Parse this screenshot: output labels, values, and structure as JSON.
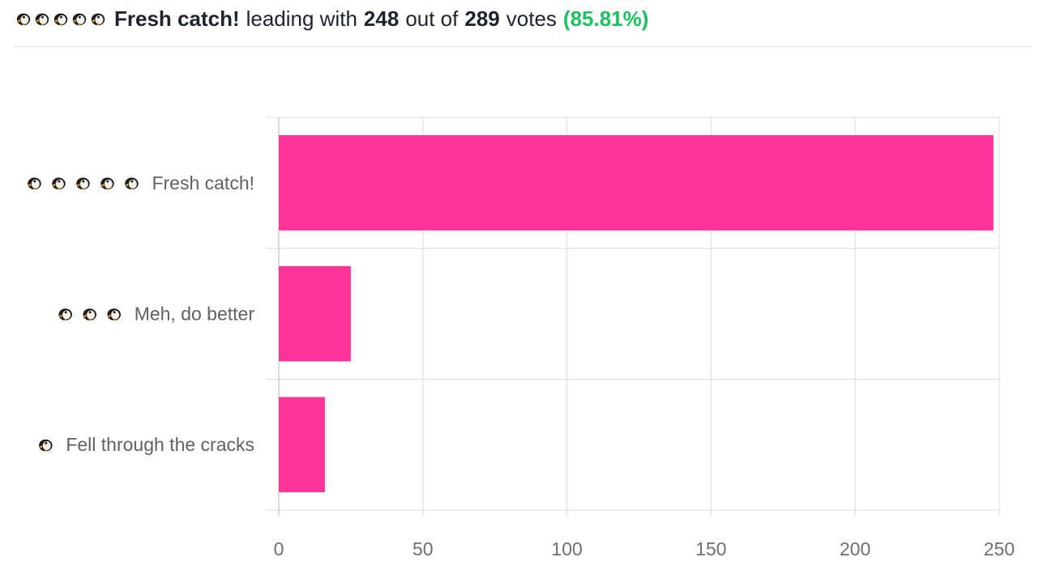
{
  "summary": {
    "icon_name": "penguin-icon",
    "icon_count": 5,
    "leader": "Fresh catch!",
    "text_leading": "leading with",
    "votes_leader": "248",
    "text_out_of": "out of",
    "votes_total": "289",
    "text_votes": "votes",
    "percent": "(85.81%)",
    "percent_color": "#1ec15f"
  },
  "chart_data": {
    "type": "bar",
    "orientation": "horizontal",
    "categories": [
      "Fresh catch!",
      "Meh, do better",
      "Fell through the cracks"
    ],
    "category_icon_counts": [
      5,
      3,
      1
    ],
    "values": [
      248,
      25,
      16
    ],
    "xlim": [
      0,
      250
    ],
    "xticks": [
      0,
      50,
      100,
      150,
      200,
      250
    ],
    "grid": true,
    "bar_color": "#ff3399"
  }
}
